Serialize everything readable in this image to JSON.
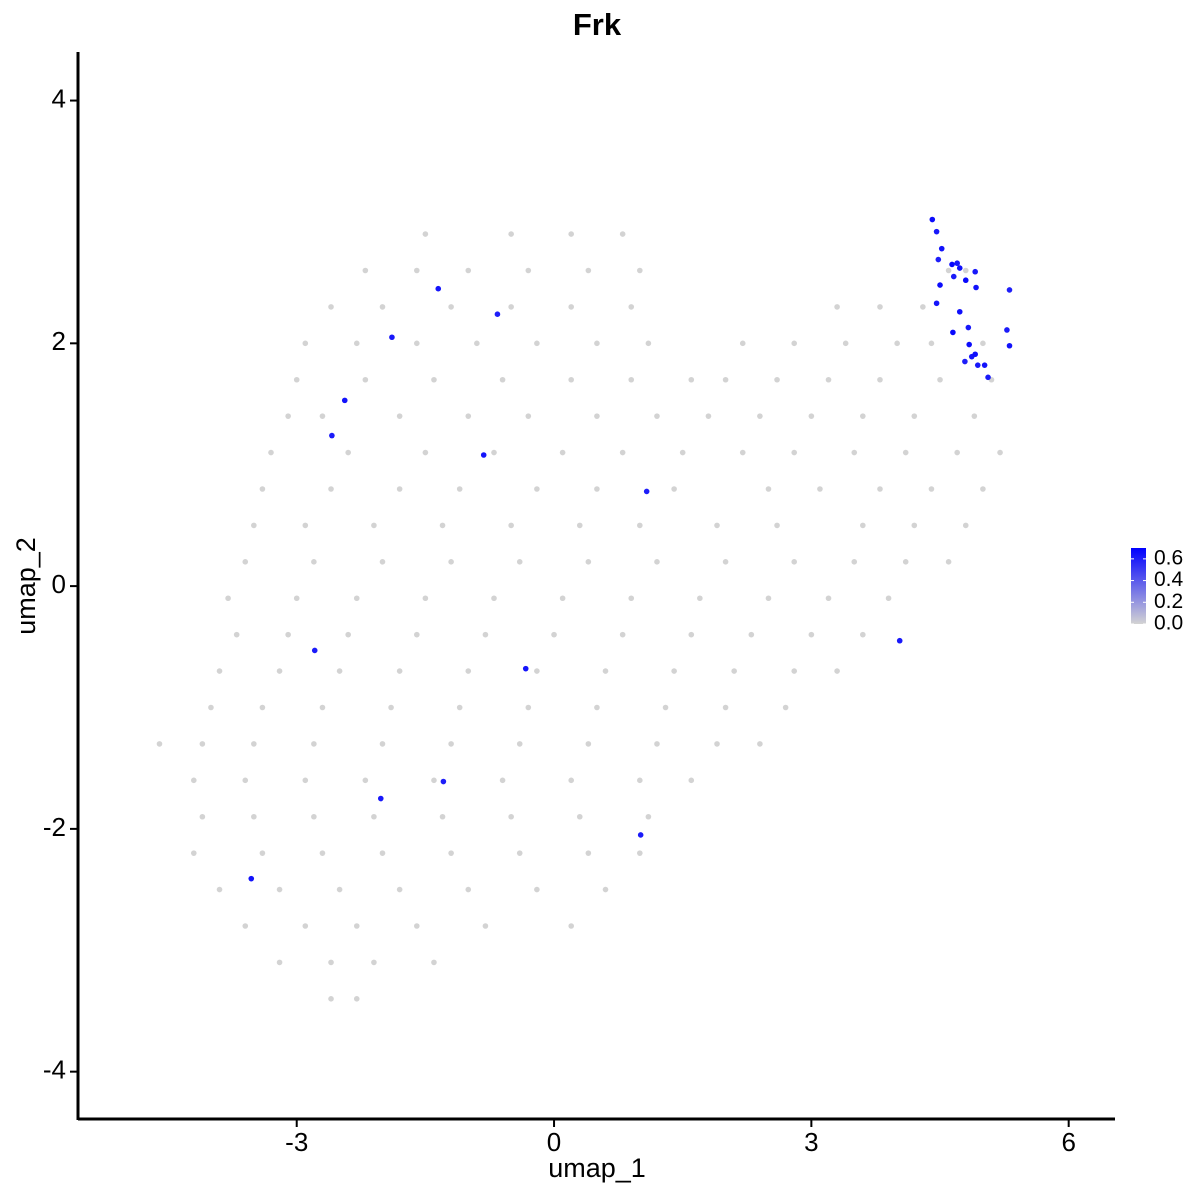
{
  "chart_data": {
    "type": "scatter",
    "title": "Frk",
    "xlabel": "umap_1",
    "ylabel": "umap_2",
    "xlim": [
      -5.55,
      6.54
    ],
    "ylim": [
      -4.39,
      4.4
    ],
    "xticks": [
      -3,
      0,
      3,
      6
    ],
    "yticks": [
      -4,
      -2,
      0,
      2,
      4
    ],
    "series": [
      {
        "color": "#d3d3d3",
        "x": [
          -1.5,
          -0.5,
          0.2,
          0.8,
          -2.2,
          -1.6,
          -1.0,
          -0.3,
          0.4,
          1.0,
          4.6,
          4.8,
          -2.6,
          -2.0,
          -1.2,
          -0.5,
          0.2,
          0.9,
          3.3,
          3.8,
          4.3,
          -2.9,
          -2.3,
          -1.6,
          -0.9,
          -0.2,
          0.5,
          1.1,
          2.2,
          2.8,
          3.4,
          4.0,
          4.4,
          5.0,
          -3.0,
          -2.2,
          -1.4,
          -0.6,
          0.2,
          0.9,
          1.6,
          2.0,
          2.6,
          3.2,
          3.8,
          4.5,
          5.1,
          -3.1,
          -2.7,
          -1.8,
          -1.0,
          -0.3,
          0.5,
          1.2,
          1.8,
          2.4,
          3.0,
          3.6,
          4.2,
          4.9,
          -3.3,
          -2.4,
          -1.5,
          -0.7,
          0.1,
          0.8,
          1.5,
          2.2,
          2.8,
          3.5,
          4.1,
          4.7,
          5.2,
          -3.4,
          -2.6,
          -1.8,
          -1.1,
          -0.2,
          0.5,
          1.4,
          2.5,
          3.1,
          3.8,
          4.4,
          5.0,
          -3.5,
          -2.9,
          -2.1,
          -1.3,
          -0.5,
          0.3,
          1.0,
          1.9,
          2.6,
          3.6,
          4.2,
          4.8,
          -3.6,
          -2.8,
          -2.0,
          -1.2,
          -0.4,
          0.4,
          1.2,
          2.0,
          2.8,
          3.5,
          4.1,
          4.6,
          -3.8,
          -3.0,
          -2.3,
          -1.5,
          -0.7,
          0.1,
          0.9,
          1.7,
          2.5,
          3.2,
          3.9,
          -3.7,
          -3.1,
          -2.4,
          -1.6,
          -0.8,
          0.0,
          0.8,
          1.6,
          2.3,
          3.0,
          3.6,
          -3.9,
          -3.2,
          -2.5,
          -1.8,
          -1.0,
          -0.2,
          0.6,
          1.4,
          2.1,
          2.8,
          3.3,
          -4.0,
          -3.4,
          -2.7,
          -1.9,
          -1.1,
          -0.3,
          0.5,
          1.3,
          2.0,
          2.7,
          -4.6,
          -4.1,
          -3.5,
          -2.8,
          -2.0,
          -1.2,
          -0.4,
          0.4,
          1.2,
          1.9,
          2.4,
          -4.2,
          -3.6,
          -2.9,
          -2.2,
          -1.4,
          -0.6,
          0.2,
          1.0,
          1.6,
          -4.1,
          -3.5,
          -2.8,
          -2.1,
          -1.3,
          -0.5,
          0.3,
          1.1,
          -4.2,
          -3.4,
          -2.7,
          -2.0,
          -1.2,
          -0.4,
          0.4,
          1.0,
          -3.9,
          -3.2,
          -2.5,
          -1.8,
          -1.0,
          -0.2,
          0.6,
          -3.6,
          -2.9,
          -2.3,
          -1.6,
          -0.8,
          0.2,
          -3.2,
          -2.6,
          -2.1,
          -1.4,
          -2.6,
          -2.3
        ],
        "values": [
          2.9,
          2.9,
          2.9,
          2.9,
          2.6,
          2.6,
          2.6,
          2.6,
          2.6,
          2.6,
          2.6,
          2.6,
          2.3,
          2.3,
          2.3,
          2.3,
          2.3,
          2.3,
          2.3,
          2.3,
          2.3,
          2.0,
          2.0,
          2.0,
          2.0,
          2.0,
          2.0,
          2.0,
          2.0,
          2.0,
          2.0,
          2.0,
          2.0,
          2.0,
          1.7,
          1.7,
          1.7,
          1.7,
          1.7,
          1.7,
          1.7,
          1.7,
          1.7,
          1.7,
          1.7,
          1.7,
          1.7,
          1.4,
          1.4,
          1.4,
          1.4,
          1.4,
          1.4,
          1.4,
          1.4,
          1.4,
          1.4,
          1.4,
          1.4,
          1.4,
          1.1,
          1.1,
          1.1,
          1.1,
          1.1,
          1.1,
          1.1,
          1.1,
          1.1,
          1.1,
          1.1,
          1.1,
          1.1,
          0.8,
          0.8,
          0.8,
          0.8,
          0.8,
          0.8,
          0.8,
          0.8,
          0.8,
          0.8,
          0.8,
          0.8,
          0.5,
          0.5,
          0.5,
          0.5,
          0.5,
          0.5,
          0.5,
          0.5,
          0.5,
          0.5,
          0.5,
          0.5,
          0.2,
          0.2,
          0.2,
          0.2,
          0.2,
          0.2,
          0.2,
          0.2,
          0.2,
          0.2,
          0.2,
          0.2,
          -0.1,
          -0.1,
          -0.1,
          -0.1,
          -0.1,
          -0.1,
          -0.1,
          -0.1,
          -0.1,
          -0.1,
          -0.1,
          -0.4,
          -0.4,
          -0.4,
          -0.4,
          -0.4,
          -0.4,
          -0.4,
          -0.4,
          -0.4,
          -0.4,
          -0.4,
          -0.7,
          -0.7,
          -0.7,
          -0.7,
          -0.7,
          -0.7,
          -0.7,
          -0.7,
          -0.7,
          -0.7,
          -0.7,
          -1.0,
          -1.0,
          -1.0,
          -1.0,
          -1.0,
          -1.0,
          -1.0,
          -1.0,
          -1.0,
          -1.0,
          -1.3,
          -1.3,
          -1.3,
          -1.3,
          -1.3,
          -1.3,
          -1.3,
          -1.3,
          -1.3,
          -1.3,
          -1.3,
          -1.6,
          -1.6,
          -1.6,
          -1.6,
          -1.6,
          -1.6,
          -1.6,
          -1.6,
          -1.6,
          -1.9,
          -1.9,
          -1.9,
          -1.9,
          -1.9,
          -1.9,
          -1.9,
          -1.9,
          -2.2,
          -2.2,
          -2.2,
          -2.2,
          -2.2,
          -2.2,
          -2.2,
          -2.2,
          -2.5,
          -2.5,
          -2.5,
          -2.5,
          -2.5,
          -2.5,
          -2.5,
          -2.8,
          -2.8,
          -2.8,
          -2.8,
          -2.8,
          -2.8,
          -3.1,
          -3.1,
          -3.1,
          -3.1,
          -3.4,
          -3.4
        ]
      },
      {
        "x": [
          4.41,
          4.46,
          4.52,
          4.48,
          4.64,
          4.7,
          4.73,
          4.66,
          4.8,
          4.91,
          4.92,
          4.5,
          5.31,
          4.46,
          4.73,
          4.83,
          4.65,
          5.28,
          5.31,
          4.84,
          4.87,
          4.79,
          4.91,
          4.94,
          5.02,
          5.06,
          -1.35,
          -0.66,
          -1.89,
          -2.44,
          -2.59,
          -0.82,
          1.08,
          4.03,
          -2.79,
          -0.33,
          -1.29,
          -2.02,
          1.01,
          -3.53
        ],
        "values": [
          3.02,
          2.92,
          2.78,
          2.69,
          2.65,
          2.66,
          2.62,
          2.55,
          2.52,
          2.59,
          2.46,
          2.48,
          2.44,
          2.33,
          2.26,
          2.13,
          2.09,
          2.11,
          1.98,
          1.99,
          1.89,
          1.85,
          1.91,
          1.82,
          1.82,
          1.72,
          2.45,
          2.24,
          2.05,
          1.53,
          1.24,
          1.08,
          0.78,
          -0.45,
          -0.53,
          -0.68,
          -1.61,
          -1.75,
          -2.05,
          -2.41
        ],
        "expression": [
          0.66,
          0.62,
          0.64,
          0.6,
          0.68,
          0.63,
          0.65,
          0.61,
          0.67,
          0.62,
          0.64,
          0.66,
          0.6,
          0.63,
          0.65,
          0.62,
          0.67,
          0.61,
          0.64,
          0.66,
          0.63,
          0.6,
          0.65,
          0.62,
          0.64,
          0.61,
          0.63,
          0.6,
          0.62,
          0.64,
          0.61,
          0.63,
          0.6,
          0.62,
          0.61,
          0.63,
          0.6,
          0.62,
          0.61,
          0.64
        ]
      }
    ],
    "colorbar": {
      "lim": [
        0,
        0.7
      ],
      "low": "#d3d3d3",
      "high": "#0000ff",
      "ticks": [
        {
          "value": 0,
          "label": "0.0"
        },
        {
          "value": 0.2,
          "label": "0.2"
        },
        {
          "value": 0.4,
          "label": "0.4"
        },
        {
          "value": 0.6,
          "label": "0.6"
        }
      ]
    }
  }
}
